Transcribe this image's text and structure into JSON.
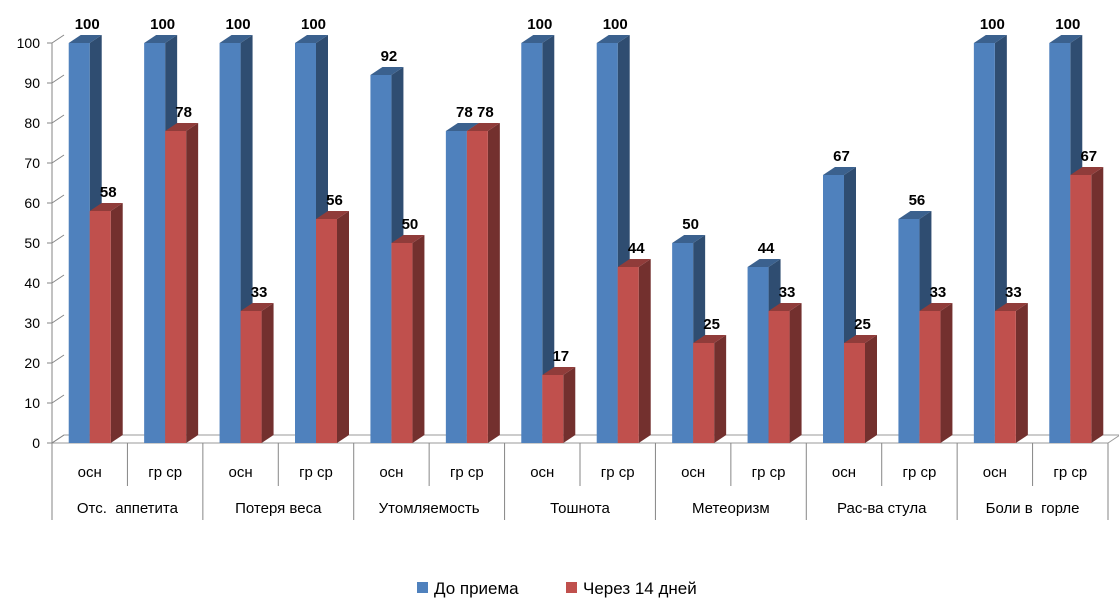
{
  "chart_data": {
    "type": "bar",
    "title": "",
    "xlabel": "",
    "ylabel": "",
    "ylim": [
      0,
      100
    ],
    "yticks": [
      0,
      10,
      20,
      30,
      40,
      50,
      60,
      70,
      80,
      90,
      100
    ],
    "groups": [
      {
        "label": "Отс.  аппетита",
        "subs": [
          "осн",
          "гр ср"
        ]
      },
      {
        "label": "Потеря веса",
        "subs": [
          "осн",
          "гр ср"
        ]
      },
      {
        "label": "Утомляемость",
        "subs": [
          "осн",
          "гр ср"
        ]
      },
      {
        "label": "Тошнота",
        "subs": [
          "осн",
          "гр ср"
        ]
      },
      {
        "label": "Метеоризм",
        "subs": [
          "осн",
          "гр ср"
        ]
      },
      {
        "label": "Рас-ва стула",
        "subs": [
          "осн",
          "гр ср"
        ]
      },
      {
        "label": "Боли в  горле",
        "subs": [
          "осн",
          "гр ср"
        ]
      }
    ],
    "series": [
      {
        "name": "До приема",
        "color": "#4F81BD",
        "values": [
          100,
          100,
          100,
          100,
          92,
          78,
          100,
          100,
          50,
          44,
          67,
          56,
          100,
          100
        ]
      },
      {
        "name": "Через 14 дней",
        "color": "#C0504D",
        "values": [
          58,
          78,
          33,
          56,
          50,
          78,
          17,
          44,
          25,
          33,
          25,
          33,
          33,
          67
        ]
      }
    ],
    "legend": "bottom",
    "grid": false
  }
}
